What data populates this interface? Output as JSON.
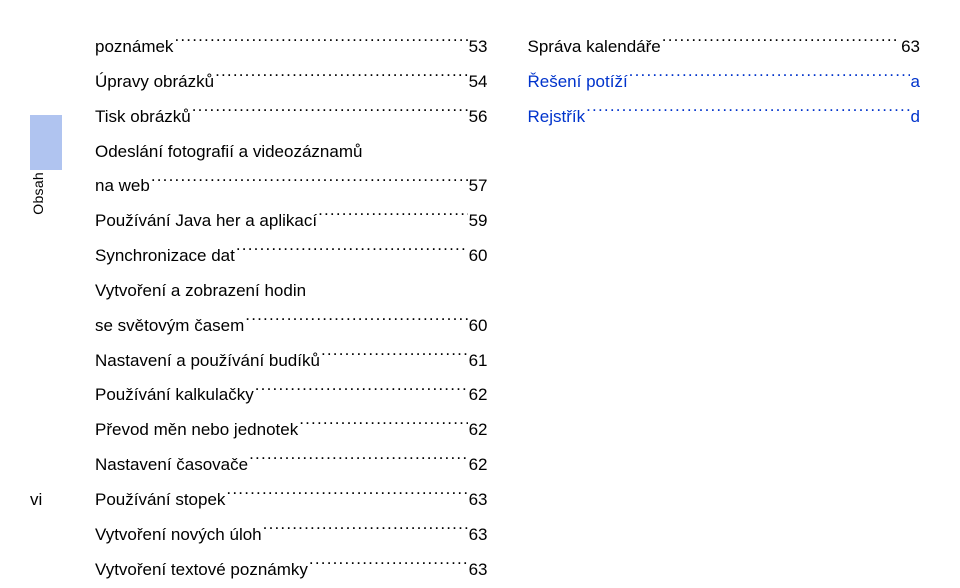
{
  "sidebar_tab_label": "Obsah",
  "page_number_label": "vi",
  "left_column": [
    {
      "label": "poznámek",
      "page": "53",
      "indent": 0,
      "link": false
    },
    {
      "label": "Úpravy obrázků",
      "page": "54",
      "indent": 0,
      "link": false
    },
    {
      "label": "Tisk obrázků",
      "page": "56",
      "indent": 0,
      "link": false
    },
    {
      "label_line1": "Odeslání fotografií a videozáznamů",
      "label_line2": "na web",
      "page": "57",
      "indent": 0,
      "link": false,
      "wrap": true
    },
    {
      "label": "Používání Java her a aplikací",
      "page": "59",
      "indent": 0,
      "link": false
    },
    {
      "label": "Synchronizace dat",
      "page": "60",
      "indent": 0,
      "link": false
    },
    {
      "label_line1": "Vytvoření a zobrazení hodin",
      "label_line2": "se světovým časem",
      "page": "60",
      "indent": 0,
      "link": false,
      "wrap": true
    },
    {
      "label": "Nastavení a používání budíků",
      "page": "61",
      "indent": 0,
      "link": false
    },
    {
      "label": "Používání kalkulačky",
      "page": "62",
      "indent": 0,
      "link": false
    },
    {
      "label": "Převod měn nebo jednotek",
      "page": "62",
      "indent": 0,
      "link": false
    },
    {
      "label": "Nastavení časovače",
      "page": "62",
      "indent": 0,
      "link": false
    },
    {
      "label": "Používání stopek",
      "page": "63",
      "indent": 0,
      "link": false
    },
    {
      "label": "Vytvoření nových úloh",
      "page": "63",
      "indent": 0,
      "link": false
    },
    {
      "label": "Vytvoření textové poznámky",
      "page": "63",
      "indent": 0,
      "link": false
    }
  ],
  "right_column": [
    {
      "label": "Správa kalendáře",
      "page": "63",
      "link": false
    },
    {
      "label": "Řešení potíží",
      "page": "a",
      "link": true
    },
    {
      "label": "Rejstřík",
      "page": "d",
      "link": true
    }
  ],
  "colors": {
    "tab_bg": "#b0c4f0",
    "link_color": "#0033cc",
    "text_color": "#000000",
    "background": "#ffffff"
  }
}
